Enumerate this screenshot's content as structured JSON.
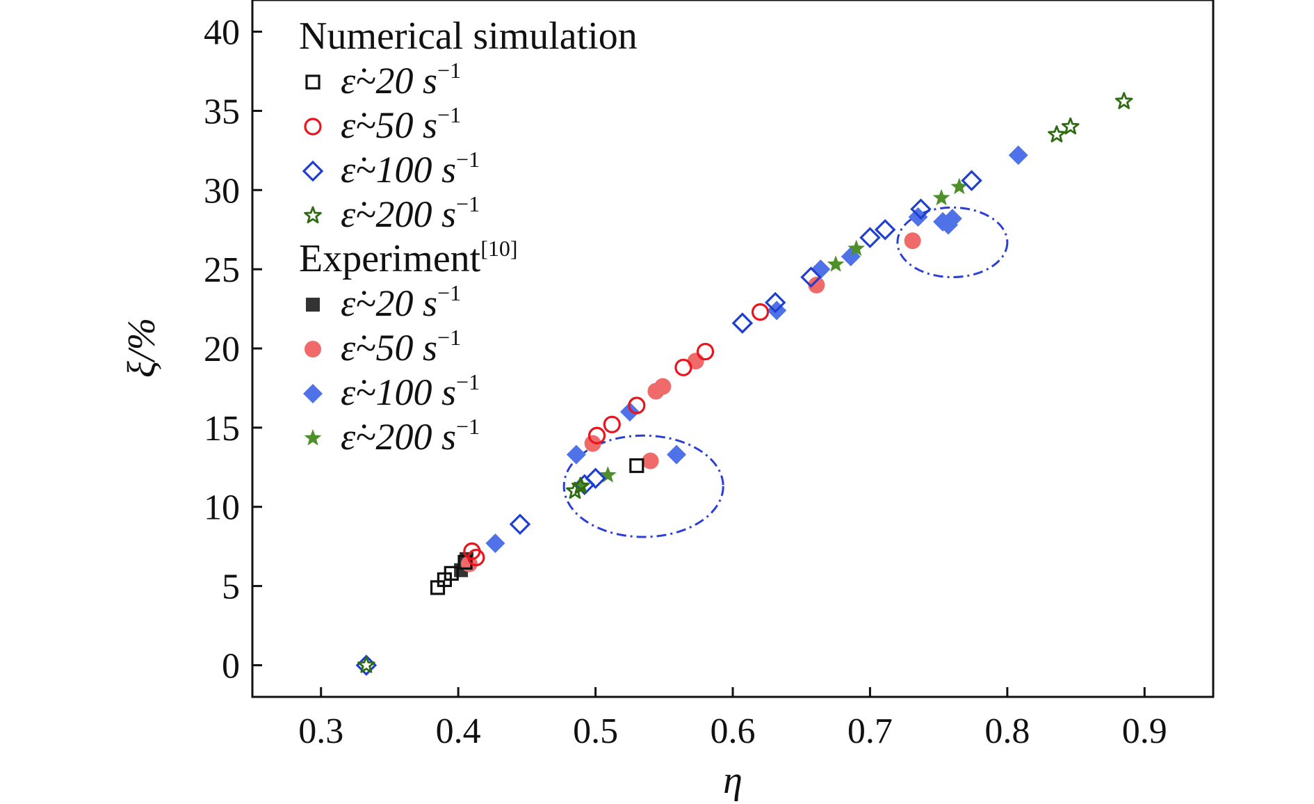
{
  "chart_data": {
    "type": "scatter",
    "xlabel": "η",
    "ylabel": "ξ/%",
    "xlim": [
      0.25,
      0.95
    ],
    "ylim": [
      -2,
      42
    ],
    "xticks": [
      0.3,
      0.4,
      0.5,
      0.6,
      0.7,
      0.8,
      0.9
    ],
    "yticks": [
      0,
      5,
      10,
      15,
      20,
      25,
      30,
      35,
      40
    ],
    "xtick_labels": [
      "0.3",
      "0.4",
      "0.5",
      "0.6",
      "0.7",
      "0.8",
      "0.9"
    ],
    "ytick_labels": [
      "0",
      "5",
      "10",
      "15",
      "20",
      "25",
      "30",
      "35",
      "40"
    ],
    "grid": false,
    "legend_position": "top-left",
    "legend_groups": [
      {
        "title": "Numerical simulation",
        "title_sup": ""
      },
      {
        "title": "Experiment",
        "title_sup": "[10]"
      }
    ],
    "colors": {
      "black": "#111111",
      "dark_gray": "#333333",
      "red": "#e8141e",
      "salmon": "#f06a6a",
      "blue": "#1f3fd1",
      "light_blue": "#4f72e8",
      "dark_green": "#2e6b12",
      "green": "#4e8f2a",
      "circle": "#2b3fd6"
    },
    "series": [
      {
        "name": "ε̇~20 s⁻¹",
        "legend_label": "ε̇~20 s",
        "legend_sup": "−1",
        "group": 0,
        "marker": "square",
        "filled": false,
        "color": "#111111",
        "x": [
          0.385,
          0.39,
          0.395,
          0.405,
          0.53
        ],
        "y": [
          4.9,
          5.4,
          5.8,
          6.5,
          12.6
        ]
      },
      {
        "name": "ε̇~50 s⁻¹",
        "legend_label": "ε̇~50 s",
        "legend_sup": "−1",
        "group": 0,
        "marker": "circle",
        "filled": false,
        "color": "#e8141e",
        "x": [
          0.41,
          0.413,
          0.501,
          0.512,
          0.53,
          0.564,
          0.58,
          0.62
        ],
        "y": [
          7.2,
          6.8,
          14.5,
          15.2,
          16.4,
          18.8,
          19.8,
          22.3
        ]
      },
      {
        "name": "ε̇~100 s⁻¹",
        "legend_label": "ε̇~100 s",
        "legend_sup": "−1",
        "group": 0,
        "marker": "diamond",
        "filled": false,
        "color": "#1f3fd1",
        "x": [
          0.333,
          0.445,
          0.492,
          0.5,
          0.607,
          0.631,
          0.657,
          0.7,
          0.711,
          0.737,
          0.774
        ],
        "y": [
          0.0,
          8.9,
          11.4,
          11.8,
          21.6,
          22.9,
          24.5,
          27.0,
          27.5,
          28.8,
          30.6
        ]
      },
      {
        "name": "ε̇~200 s⁻¹",
        "legend_label": "ε̇~200 s",
        "legend_sup": "−1",
        "group": 0,
        "marker": "star",
        "filled": false,
        "color": "#2e6b12",
        "x": [
          0.333,
          0.485,
          0.489,
          0.836,
          0.846,
          0.885
        ],
        "y": [
          0.0,
          11.0,
          11.3,
          33.5,
          34.0,
          35.6
        ]
      },
      {
        "name": "ε̇~20 s⁻¹",
        "legend_label": "ε̇~20 s",
        "legend_sup": "−1",
        "group": 1,
        "marker": "square",
        "filled": true,
        "color": "#333333",
        "x": [
          0.402,
          0.406
        ],
        "y": [
          6.0,
          6.7
        ]
      },
      {
        "name": "ε̇~50 s⁻¹",
        "legend_label": "ε̇~50 s",
        "legend_sup": "−1",
        "group": 1,
        "marker": "circle",
        "filled": true,
        "color": "#f06a6a",
        "x": [
          0.408,
          0.498,
          0.54,
          0.544,
          0.549,
          0.573,
          0.661,
          0.731
        ],
        "y": [
          6.4,
          14.0,
          12.9,
          17.3,
          17.6,
          19.2,
          24.0,
          26.8
        ]
      },
      {
        "name": "ε̇~100 s⁻¹",
        "legend_label": "ε̇~100 s",
        "legend_sup": "−1",
        "group": 1,
        "marker": "diamond",
        "filled": true,
        "color": "#4f72e8",
        "x": [
          0.427,
          0.486,
          0.525,
          0.559,
          0.632,
          0.664,
          0.686,
          0.735,
          0.753,
          0.76,
          0.757,
          0.808
        ],
        "y": [
          7.7,
          13.3,
          16.0,
          13.3,
          22.4,
          25.0,
          25.8,
          28.3,
          28.0,
          28.2,
          27.8,
          32.2
        ]
      },
      {
        "name": "ε̇~200 s⁻¹",
        "legend_label": "ε̇~200 s",
        "legend_sup": "−1",
        "group": 1,
        "marker": "star",
        "filled": true,
        "color": "#4e8f2a",
        "x": [
          0.49,
          0.509,
          0.675,
          0.69,
          0.752,
          0.765
        ],
        "y": [
          11.3,
          12.0,
          25.3,
          26.3,
          29.5,
          30.2
        ]
      }
    ],
    "annotations": [
      {
        "type": "ellipse",
        "cx": 0.535,
        "cy": 11.3,
        "rx": 0.058,
        "ry": 3.2,
        "style": "dash-dot",
        "color": "#2b3fd6"
      },
      {
        "type": "ellipse",
        "cx": 0.76,
        "cy": 26.7,
        "rx": 0.04,
        "ry": 2.2,
        "style": "dash-dot",
        "color": "#2b3fd6"
      }
    ]
  }
}
